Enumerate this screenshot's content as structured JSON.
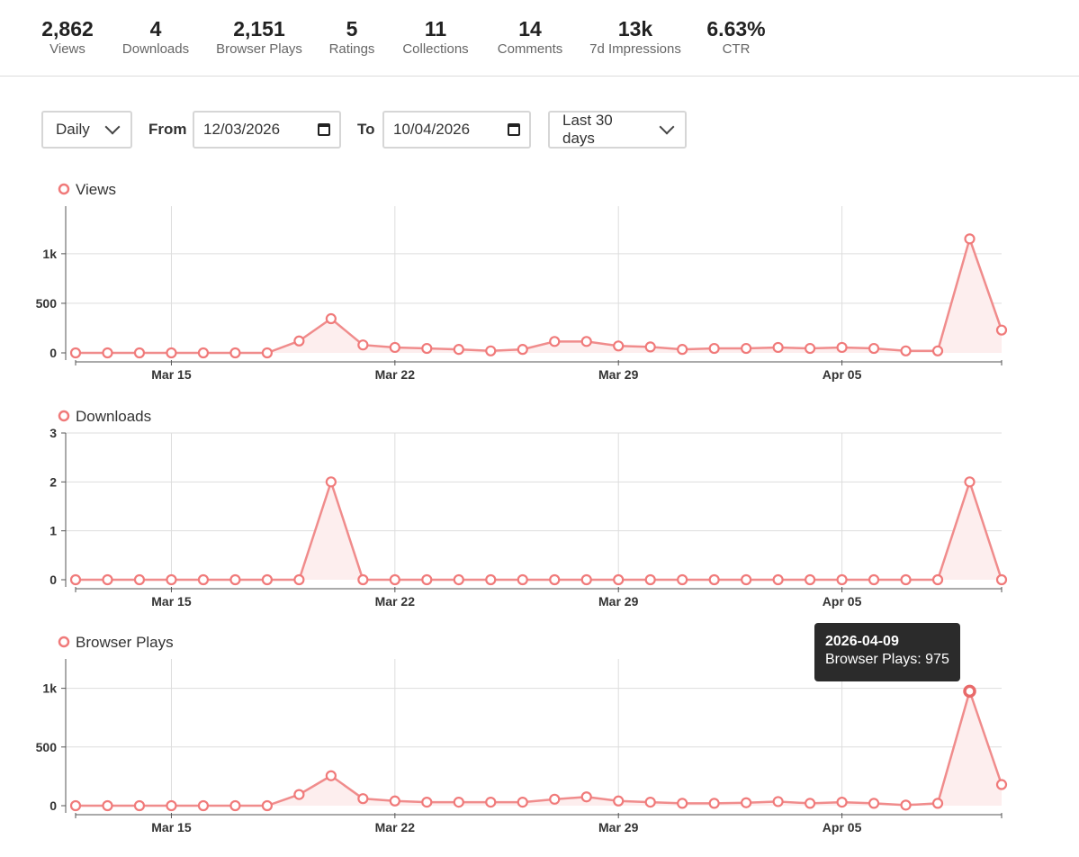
{
  "stats": [
    {
      "value": "2,862",
      "label": "Views"
    },
    {
      "value": "4",
      "label": "Downloads"
    },
    {
      "value": "2,151",
      "label": "Browser Plays"
    },
    {
      "value": "5",
      "label": "Ratings"
    },
    {
      "value": "11",
      "label": "Collections"
    },
    {
      "value": "14",
      "label": "Comments"
    },
    {
      "value": "13k",
      "label": "7d Impressions"
    },
    {
      "value": "6.63%",
      "label": "CTR"
    }
  ],
  "controls": {
    "interval": "Daily",
    "from_label": "From",
    "from_value": "12/03/2026",
    "to_label": "To",
    "to_value": "10/04/2026",
    "range": "Last 30 days"
  },
  "colors": {
    "series": "#f08c8c",
    "marker": "#f07a7a",
    "area": "#fdeeee",
    "grid": "#dddddd",
    "axis": "#555555"
  },
  "tooltip": {
    "date": "2026-04-09",
    "text": "Browser Plays: 975"
  },
  "chart_data": [
    {
      "type": "area",
      "title": "Views",
      "legend": "Views",
      "x_start": "2026-03-12",
      "x_end": "2026-04-10",
      "x_ticks": [
        "Mar 15",
        "Mar 22",
        "Mar 29",
        "Apr 05"
      ],
      "x_tick_index": [
        3,
        10,
        17,
        24
      ],
      "y_ticks": [
        {
          "value": 0,
          "label": "0"
        },
        {
          "value": 500,
          "label": "500"
        },
        {
          "value": 1000,
          "label": "1k"
        }
      ],
      "ylim": [
        0,
        1480
      ],
      "values": [
        0,
        0,
        0,
        0,
        0,
        0,
        0,
        120,
        345,
        80,
        55,
        45,
        35,
        20,
        35,
        115,
        115,
        70,
        60,
        35,
        45,
        45,
        55,
        45,
        55,
        45,
        20,
        20,
        1150,
        230
      ]
    },
    {
      "type": "area",
      "title": "Downloads",
      "legend": "Downloads",
      "x_start": "2026-03-12",
      "x_end": "2026-04-10",
      "x_ticks": [
        "Mar 15",
        "Mar 22",
        "Mar 29",
        "Apr 05"
      ],
      "x_tick_index": [
        3,
        10,
        17,
        24
      ],
      "y_ticks": [
        {
          "value": 0,
          "label": "0"
        },
        {
          "value": 1,
          "label": "1"
        },
        {
          "value": 2,
          "label": "2"
        },
        {
          "value": 3,
          "label": "3"
        }
      ],
      "ylim": [
        0,
        3
      ],
      "values": [
        0,
        0,
        0,
        0,
        0,
        0,
        0,
        0,
        2,
        0,
        0,
        0,
        0,
        0,
        0,
        0,
        0,
        0,
        0,
        0,
        0,
        0,
        0,
        0,
        0,
        0,
        0,
        0,
        2,
        0
      ]
    },
    {
      "type": "area",
      "title": "Browser Plays",
      "legend": "Browser Plays",
      "x_start": "2026-03-12",
      "x_end": "2026-04-10",
      "x_ticks": [
        "Mar 15",
        "Mar 22",
        "Mar 29",
        "Apr 05"
      ],
      "x_tick_index": [
        3,
        10,
        17,
        24
      ],
      "y_ticks": [
        {
          "value": 0,
          "label": "0"
        },
        {
          "value": 500,
          "label": "500"
        },
        {
          "value": 1000,
          "label": "1k"
        }
      ],
      "ylim": [
        0,
        1250
      ],
      "highlight_index": 28,
      "values": [
        0,
        0,
        0,
        0,
        0,
        0,
        0,
        95,
        255,
        60,
        40,
        30,
        30,
        30,
        30,
        55,
        75,
        40,
        30,
        20,
        20,
        25,
        35,
        20,
        30,
        20,
        5,
        20,
        975,
        180
      ]
    }
  ]
}
